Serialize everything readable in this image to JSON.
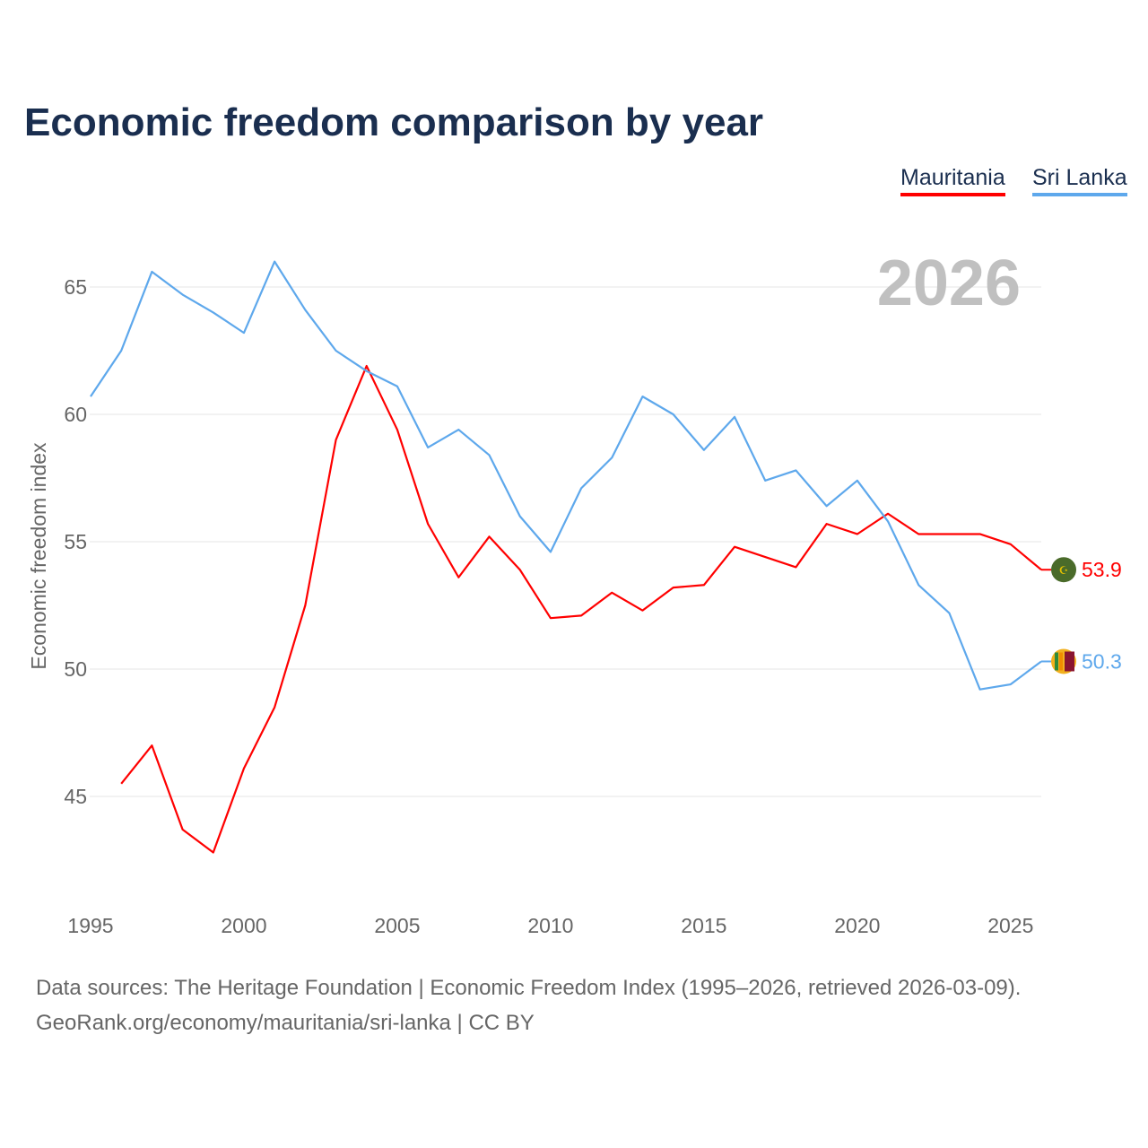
{
  "chart_data": {
    "type": "line",
    "title": "Economic freedom comparison by year",
    "xlabel": "",
    "ylabel": "Economic freedom index",
    "xlim": [
      1995,
      2026
    ],
    "ylim": [
      41.5,
      67.5
    ],
    "x_ticks": [
      "1995",
      "2000",
      "2005",
      "2010",
      "2015",
      "2020",
      "2025"
    ],
    "y_ticks": [
      "45",
      "50",
      "55",
      "60",
      "65"
    ],
    "grid": true,
    "legend_placement": "top-right",
    "year_label": "2026",
    "series": [
      {
        "name": "Mauritania",
        "color": "#ff0000",
        "end_label": "53.9",
        "x": [
          1996,
          1997,
          1998,
          1999,
          2000,
          2001,
          2002,
          2003,
          2004,
          2005,
          2006,
          2007,
          2008,
          2009,
          2010,
          2011,
          2012,
          2013,
          2014,
          2015,
          2016,
          2017,
          2018,
          2019,
          2020,
          2021,
          2022,
          2023,
          2024,
          2025,
          2026
        ],
        "values": [
          45.5,
          47.0,
          43.7,
          42.8,
          46.1,
          48.5,
          52.5,
          59.0,
          61.9,
          59.4,
          55.7,
          53.6,
          55.2,
          53.9,
          52.0,
          52.1,
          53.0,
          52.3,
          53.2,
          53.3,
          54.8,
          54.4,
          54.0,
          55.7,
          55.3,
          56.1,
          55.3,
          55.3,
          55.3,
          54.9,
          53.9
        ]
      },
      {
        "name": "Sri Lanka",
        "color": "#5ea8ec",
        "end_label": "50.3",
        "x": [
          1995,
          1996,
          1997,
          1998,
          1999,
          2000,
          2001,
          2002,
          2003,
          2004,
          2005,
          2006,
          2007,
          2008,
          2009,
          2010,
          2011,
          2012,
          2013,
          2014,
          2015,
          2016,
          2017,
          2018,
          2019,
          2020,
          2021,
          2022,
          2023,
          2024,
          2025,
          2026
        ],
        "values": [
          60.7,
          62.5,
          65.6,
          64.7,
          64.0,
          63.2,
          66.0,
          64.1,
          62.5,
          61.7,
          61.1,
          58.7,
          59.4,
          58.4,
          56.0,
          54.6,
          57.1,
          58.3,
          60.7,
          60.0,
          58.6,
          59.9,
          57.4,
          57.8,
          56.4,
          57.4,
          55.8,
          53.3,
          52.2,
          49.2,
          49.4,
          50.3
        ]
      }
    ]
  },
  "footer": {
    "line1": "Data sources: The Heritage Foundation | Economic Freedom Index (1995–2026, retrieved 2026-03-09).",
    "line2": "GeoRank.org/economy/mauritania/sri-lanka | CC BY"
  }
}
